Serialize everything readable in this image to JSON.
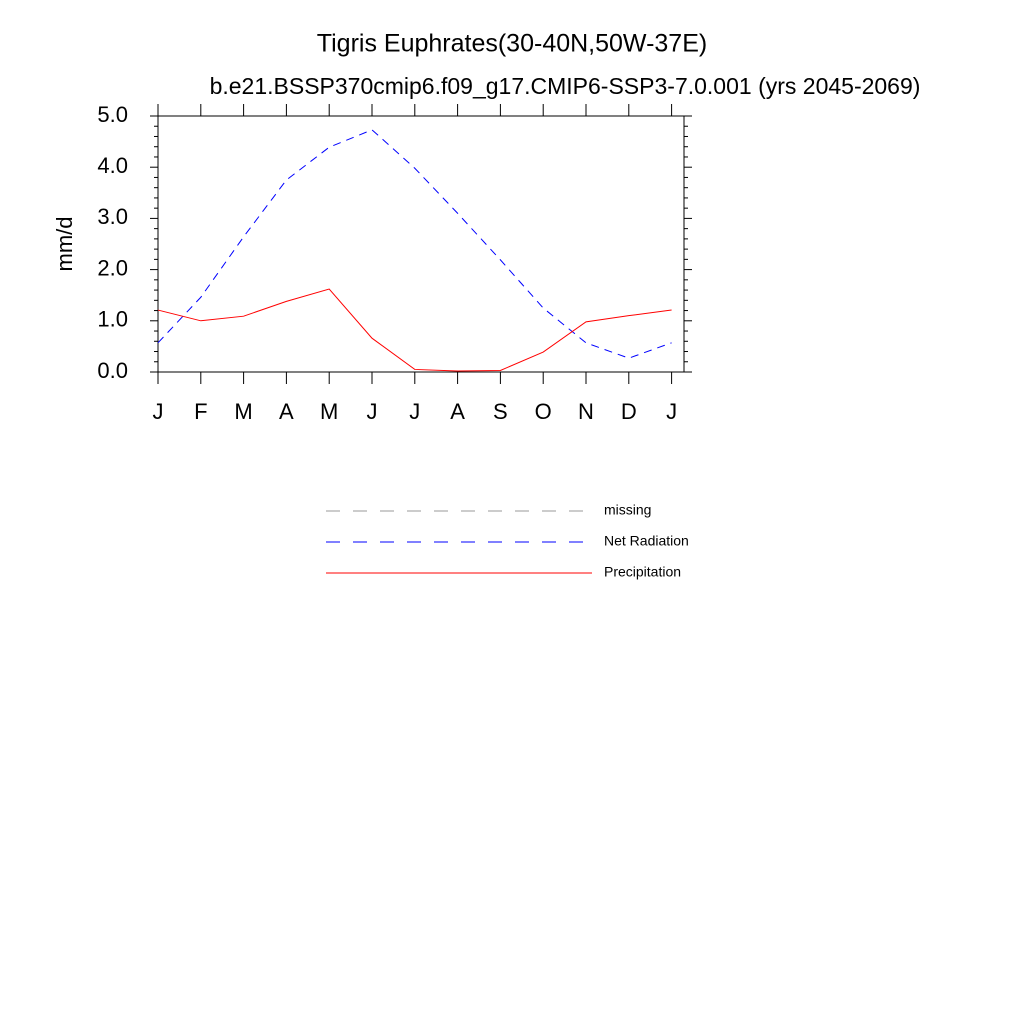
{
  "chart_data": {
    "type": "line",
    "title": "Tigris Euphrates(30-40N,50W-37E)",
    "subtitle": "b.e21.BSSP370cmip6.f09_g17.CMIP6-SSP3-7.0.001 (yrs 2045-2069)",
    "ylabel": "mm/d",
    "categories": [
      "J",
      "F",
      "M",
      "A",
      "M",
      "J",
      "J",
      "A",
      "S",
      "O",
      "N",
      "D",
      "J"
    ],
    "ylim": [
      0,
      5
    ],
    "yticks": [
      {
        "value": 0,
        "label": "0.0"
      },
      {
        "value": 1,
        "label": "1.0"
      },
      {
        "value": 2,
        "label": "2.0"
      },
      {
        "value": 3,
        "label": "3.0"
      },
      {
        "value": 4,
        "label": "4.0"
      },
      {
        "value": 5,
        "label": "5.0"
      }
    ],
    "series": [
      {
        "name": "missing",
        "color": "#999999",
        "dashed": true,
        "values": [
          null,
          null,
          null,
          null,
          null,
          null,
          null,
          null,
          null,
          null,
          null,
          null,
          null
        ]
      },
      {
        "name": "Net Radiation",
        "color": "#0000ff",
        "dashed": true,
        "values": [
          0.57,
          1.46,
          2.64,
          3.75,
          4.39,
          4.73,
          3.98,
          3.1,
          2.19,
          1.25,
          0.57,
          0.27,
          0.57
        ]
      },
      {
        "name": "Precipitation",
        "color": "#ff0000",
        "dashed": false,
        "values": [
          1.21,
          1.0,
          1.09,
          1.38,
          1.62,
          0.66,
          0.05,
          0.02,
          0.03,
          0.39,
          0.98,
          1.1,
          1.21
        ]
      }
    ]
  }
}
